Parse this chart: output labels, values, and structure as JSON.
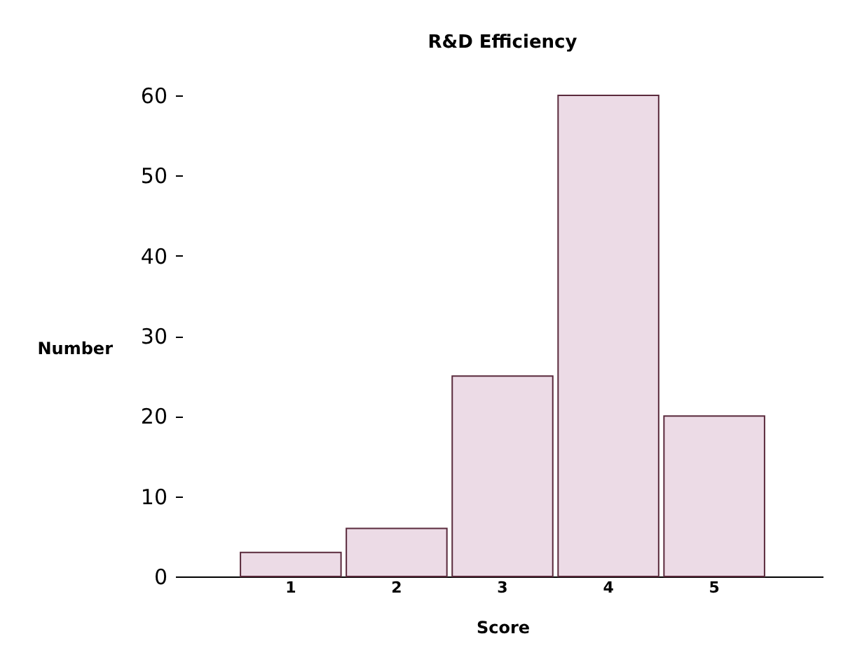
{
  "chart_data": {
    "type": "bar",
    "title": "R&D Efficiency",
    "xlabel": "Score",
    "ylabel": "Number",
    "categories": [
      "1",
      "2",
      "3",
      "4",
      "5"
    ],
    "values": [
      3,
      6,
      25,
      60,
      20
    ],
    "color": "#ecdbe6",
    "ylim": [
      0,
      60
    ],
    "yticks": [
      0,
      10,
      20,
      30,
      40,
      50,
      60
    ],
    "grid": false
  }
}
